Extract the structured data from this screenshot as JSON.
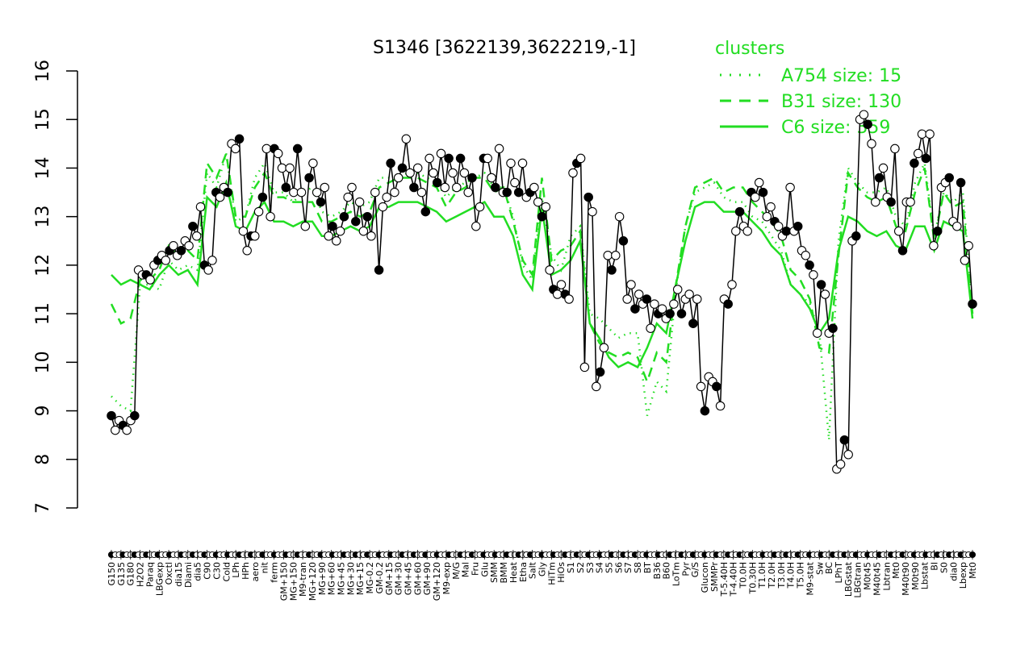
{
  "chart_data": {
    "type": "line",
    "title": "S1346 [3622139,3622219,-1]",
    "xlabel": "",
    "ylabel": "",
    "ylim": [
      7,
      16
    ],
    "yticks": [
      7,
      8,
      9,
      10,
      11,
      12,
      13,
      14,
      15,
      16
    ],
    "grid": false,
    "legend": {
      "title": "clusters",
      "placement": "top-right",
      "entries": [
        {
          "label": "A754 size: 15",
          "style": "dotted"
        },
        {
          "label": "B31 size: 130",
          "style": "dashed"
        },
        {
          "label": "C6 size: 359",
          "style": "solid"
        }
      ]
    },
    "colors": {
      "clusters": "#22dd22",
      "data": "#000000"
    },
    "x_tick_labels": [
      "G150",
      "G135",
      "G180",
      "H2O2",
      "Paraq",
      "LBGexp",
      "Oxctl",
      "dia15",
      "Diami",
      "dia5",
      "C90",
      "C30",
      "Cold",
      "LPh",
      "HPh",
      "aero",
      "nit",
      "ferm",
      "GM+150",
      "MG+150",
      "M9-tran",
      "MG+120",
      "MG+90",
      "MG+60",
      "MG+45",
      "MG+30",
      "MG+15",
      "MG-0.2",
      "GM-0.2",
      "GM+15",
      "GM+30",
      "GM+45",
      "GM+60",
      "GM+90",
      "GM+120",
      "M9-exp",
      "M/G",
      "Mal",
      "Fru",
      "Glu",
      "SMM",
      "BMM",
      "Heat",
      "Etha",
      "Salt",
      "Gly",
      "HiTm",
      "HiOs",
      "S1",
      "S2",
      "S3",
      "S4",
      "S5",
      "S6",
      "S7",
      "S8",
      "BT",
      "B36",
      "B60",
      "LoTm",
      "Pyr",
      "G/S",
      "Glucon",
      "SMMPr",
      "T-5.40H",
      "T-4.40H",
      "T0.0H",
      "T0.30H",
      "T1.0H",
      "T2.0H",
      "T3.0H",
      "T4.0H",
      "T5.0H",
      "M9-stat",
      "Sw",
      "BC",
      "LPhT",
      "LBGstat",
      "LBGtran",
      "M0t45",
      "M40t45",
      "Lbtran",
      "Mt0",
      "M40t90",
      "M0t90",
      "Lbstat",
      "BI",
      "S0",
      "dia0",
      "Lbexp",
      "Mt0"
    ],
    "series": [
      {
        "name": "",
        "values": [
          8.9,
          8.6,
          8.8,
          8.7,
          8.6,
          8.8,
          8.9,
          11.9,
          11.8,
          11.8,
          11.7,
          12.0,
          12.1,
          12.2,
          12.1,
          12.3,
          12.4,
          12.2,
          12.3,
          12.5,
          12.4,
          12.8,
          12.6,
          13.2,
          12.0,
          11.9,
          12.1,
          13.5,
          13.4,
          13.6,
          13.5,
          14.5,
          14.4,
          14.6,
          12.7,
          12.3,
          12.6,
          12.6,
          13.1,
          13.4,
          14.4,
          13.0,
          14.4,
          14.3,
          14.0,
          13.6,
          14.0,
          13.5,
          14.4,
          13.5,
          12.8,
          13.8,
          14.1,
          13.5,
          13.3,
          13.6,
          12.6,
          12.8,
          12.5,
          12.7,
          13.0,
          13.4,
          13.6,
          12.9,
          13.3,
          12.7,
          13.0,
          12.6,
          13.5,
          11.9,
          13.2,
          13.4,
          14.1,
          13.5,
          13.8,
          14.0,
          14.6,
          13.9,
          13.6,
          14.0,
          13.5,
          13.1,
          14.2,
          13.9,
          13.7,
          14.3,
          13.6,
          14.2,
          13.9,
          13.6,
          14.2,
          13.9,
          13.5,
          13.8,
          12.8,
          13.2,
          14.2,
          14.2,
          13.8,
          13.6,
          14.4,
          13.5,
          13.5,
          14.1,
          13.7,
          13.5,
          14.1,
          13.4,
          13.5,
          13.6,
          13.3,
          13.0,
          13.2,
          11.9,
          11.5,
          11.4,
          11.6,
          11.4,
          11.3,
          13.9,
          14.1,
          14.2,
          9.9,
          13.4,
          13.1,
          9.5,
          9.8,
          10.3,
          12.2,
          11.9,
          12.2,
          13.0,
          12.5,
          11.3,
          11.6,
          11.1,
          11.4,
          11.2,
          11.3,
          10.7,
          11.2,
          11.0,
          11.1,
          10.9,
          11.0,
          11.2,
          11.5,
          11.0,
          11.3,
          11.4,
          10.8,
          11.3,
          9.5,
          9.0,
          9.7,
          9.6,
          9.5,
          9.1,
          11.3,
          11.2,
          11.6,
          12.7,
          13.1,
          12.8,
          12.7,
          13.5,
          13.4,
          13.7,
          13.5,
          13.0,
          13.2,
          12.9,
          12.8,
          12.6,
          12.7,
          13.6,
          12.7,
          12.8,
          12.3,
          12.2,
          12.0,
          11.8,
          10.6,
          11.6,
          11.4,
          10.6,
          10.7,
          7.8,
          7.9,
          8.4,
          8.1,
          12.5,
          12.6,
          15.0,
          15.1,
          14.9,
          14.5,
          13.3,
          13.8,
          14.0,
          13.4,
          13.3,
          14.4,
          12.7,
          12.3,
          13.3,
          13.3,
          14.1,
          14.3,
          14.7,
          14.2,
          14.7,
          12.4,
          12.7,
          13.6,
          13.7,
          13.8,
          12.9,
          12.8,
          13.7,
          12.1,
          12.4,
          11.2
        ]
      }
    ],
    "cluster_lines": [
      {
        "name": "A754 size: 15",
        "style": "dotted",
        "values": [
          9.3,
          9.1,
          9.0,
          11.6,
          11.6,
          11.5,
          12.1,
          11.9,
          12.0,
          11.9,
          13.9,
          13.6,
          14.3,
          12.9,
          13.0,
          13.8,
          14.1,
          13.5,
          13.5,
          13.3,
          13.5,
          13.6,
          13.1,
          13.0,
          13.1,
          13.3,
          13.2,
          13.3,
          13.8,
          13.8,
          13.8,
          13.9,
          13.9,
          13.8,
          13.7,
          13.4,
          13.6,
          13.7,
          13.8,
          13.9,
          13.6,
          13.6,
          13.0,
          12.0,
          11.7,
          13.4,
          12.2,
          11.9,
          12.6,
          12.8,
          11.0,
          10.9,
          10.7,
          10.5,
          10.6,
          10.6,
          8.9,
          9.6,
          9.4,
          11.5,
          12.8,
          13.5,
          13.6,
          13.7,
          13.4,
          13.3,
          13.3,
          13.0,
          12.9,
          12.6,
          12.3,
          11.6,
          11.4,
          11.2,
          10.6,
          8.4,
          12.5,
          14.0,
          13.7,
          13.5,
          13.5,
          13.6,
          13.0,
          12.8,
          13.7,
          14.1,
          12.6,
          13.5,
          13.3,
          13.5,
          11.1
        ]
      },
      {
        "name": "B31 size: 130",
        "style": "dashed",
        "values": [
          11.2,
          10.8,
          10.9,
          11.7,
          11.7,
          11.9,
          12.4,
          12.2,
          12.3,
          12.1,
          14.1,
          13.8,
          14.3,
          13.0,
          13.0,
          13.6,
          13.9,
          13.4,
          13.4,
          13.3,
          13.3,
          13.3,
          12.9,
          12.9,
          13.0,
          13.1,
          13.0,
          13.1,
          13.6,
          13.7,
          13.8,
          13.8,
          13.8,
          13.7,
          13.6,
          13.2,
          13.5,
          13.6,
          13.8,
          13.8,
          13.5,
          13.6,
          12.9,
          12.1,
          11.8,
          13.8,
          12.1,
          12.3,
          12.4,
          12.7,
          10.8,
          10.4,
          10.2,
          10.1,
          10.2,
          10.1,
          9.6,
          10.2,
          10.0,
          11.6,
          12.8,
          13.6,
          13.7,
          13.8,
          13.5,
          13.6,
          13.6,
          13.3,
          13.1,
          12.9,
          12.6,
          11.9,
          11.7,
          11.3,
          10.3,
          10.2,
          12.2,
          13.9,
          13.6,
          13.4,
          13.3,
          13.4,
          12.8,
          12.7,
          13.5,
          14.0,
          12.5,
          13.5,
          13.2,
          13.3,
          11.0
        ]
      },
      {
        "name": "C6 size: 359",
        "style": "solid",
        "values": [
          11.8,
          11.6,
          11.7,
          11.6,
          11.5,
          11.8,
          12.0,
          11.8,
          11.9,
          11.6,
          13.4,
          13.2,
          13.7,
          12.8,
          12.7,
          13.1,
          13.3,
          12.9,
          12.9,
          12.8,
          12.9,
          12.9,
          12.6,
          12.6,
          12.7,
          12.8,
          12.7,
          12.8,
          13.2,
          13.2,
          13.3,
          13.3,
          13.3,
          13.2,
          13.1,
          12.9,
          13.0,
          13.1,
          13.2,
          13.3,
          13.0,
          13.0,
          12.6,
          11.8,
          11.5,
          13.2,
          11.8,
          11.9,
          12.1,
          12.5,
          10.8,
          10.5,
          10.1,
          9.9,
          10.0,
          9.9,
          10.3,
          10.8,
          10.6,
          11.6,
          12.5,
          13.2,
          13.3,
          13.3,
          13.1,
          13.1,
          13.1,
          12.9,
          12.7,
          12.4,
          12.2,
          11.6,
          11.4,
          11.1,
          10.6,
          10.9,
          12.3,
          13.0,
          12.9,
          12.7,
          12.6,
          12.7,
          12.4,
          12.3,
          12.8,
          12.8,
          12.3,
          12.9,
          12.8,
          12.7,
          10.9
        ]
      }
    ]
  }
}
